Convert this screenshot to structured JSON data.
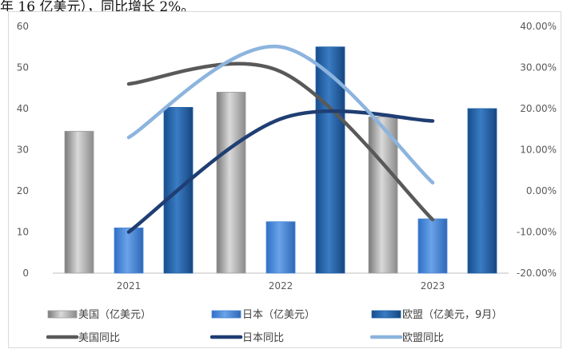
{
  "caption": "年 16 亿美元），同比增长 2%。",
  "chart_data": {
    "type": "bar",
    "categories": [
      "2021",
      "2022",
      "2023"
    ],
    "series": [
      {
        "name": "美国（亿美元）",
        "kind": "bar",
        "color": "#9e9e9e",
        "values": [
          34.5,
          44,
          38
        ]
      },
      {
        "name": "日本（亿美元）",
        "kind": "bar",
        "color": "#4a86d4",
        "values": [
          11,
          12.5,
          13.2
        ]
      },
      {
        "name": "欧盟（亿美元，9月）",
        "kind": "bar",
        "color": "#1f5fa6",
        "values": [
          40.3,
          55,
          40
        ]
      },
      {
        "name": "美国同比",
        "kind": "line",
        "axis": "right",
        "color": "#595959",
        "values": [
          26,
          29,
          -7
        ]
      },
      {
        "name": "日本同比",
        "kind": "line",
        "axis": "right",
        "color": "#1f3e73",
        "values": [
          -10,
          17.5,
          17
        ]
      },
      {
        "name": "欧盟同比",
        "kind": "line",
        "axis": "right",
        "color": "#8cb4de",
        "values": [
          13,
          35,
          2
        ]
      }
    ],
    "ylim": [
      0,
      60
    ],
    "y2lim": [
      -20,
      40
    ],
    "yticks": [
      "0",
      "10",
      "20",
      "30",
      "40",
      "50",
      "60"
    ],
    "y2ticks": [
      "-20.00%",
      "-10.00%",
      "0.00%",
      "10.00%",
      "20.00%",
      "30.00%",
      "40.00%"
    ],
    "legend": "bottom",
    "grid": false
  }
}
